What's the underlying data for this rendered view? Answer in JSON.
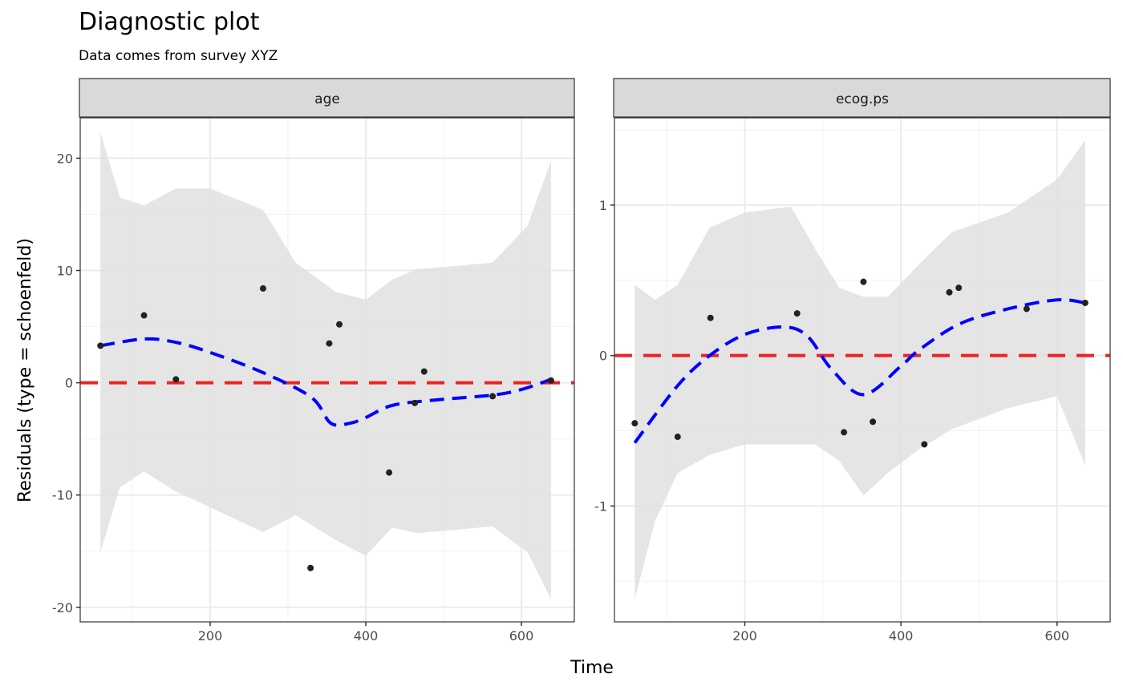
{
  "chart_data": [
    {
      "type": "scatter",
      "panel": "age",
      "title": "Diagnostic plot",
      "subtitle": "Data comes from survey XYZ",
      "xlabel": "Time",
      "ylabel": "Residuals (type = schoenfeld)",
      "xlim": [
        33,
        668
      ],
      "ylim": [
        -21.3,
        23.6
      ],
      "xticks": [
        200,
        400,
        600
      ],
      "yticks": [
        -20,
        -10,
        0,
        10,
        20
      ],
      "reference_line": 0,
      "points": {
        "x": [
          59,
          115,
          156,
          268,
          329,
          353,
          366,
          430,
          463,
          475,
          563,
          638
        ],
        "y": [
          3.3,
          6.0,
          0.3,
          8.4,
          -16.5,
          3.5,
          5.2,
          -8.0,
          -1.8,
          1.0,
          -1.2,
          0.2
        ]
      },
      "smooth": {
        "x": [
          59,
          115,
          156,
          200,
          268,
          330,
          355,
          380,
          400,
          435,
          495,
          563,
          600,
          638
        ],
        "y": [
          3.3,
          3.9,
          3.6,
          2.7,
          0.9,
          -1.3,
          -3.6,
          -3.6,
          -3.1,
          -2.0,
          -1.5,
          -1.1,
          -0.6,
          0.3
        ]
      },
      "band": {
        "x": [
          59,
          84,
          115,
          156,
          200,
          268,
          310,
          361,
          400,
          434,
          465,
          563,
          608,
          638
        ],
        "upper": [
          22.3,
          16.5,
          15.8,
          17.3,
          17.3,
          15.4,
          10.7,
          8.1,
          7.4,
          9.2,
          10.1,
          10.7,
          14.0,
          19.8
        ],
        "lower": [
          -15.1,
          -9.3,
          -7.9,
          -9.7,
          -11.1,
          -13.3,
          -11.8,
          -14.0,
          -15.4,
          -12.9,
          -13.4,
          -12.8,
          -15.1,
          -19.3
        ]
      }
    },
    {
      "type": "scatter",
      "panel": "ecog.ps",
      "xlabel": "Time",
      "xlim": [
        33,
        668
      ],
      "ylim": [
        -1.77,
        1.58
      ],
      "xticks": [
        200,
        400,
        600
      ],
      "yticks": [
        -1,
        0,
        1
      ],
      "reference_line": 0,
      "points": {
        "x": [
          59,
          114,
          156,
          267,
          327,
          352,
          364,
          430,
          462,
          474,
          561,
          636
        ],
        "y": [
          -0.45,
          -0.54,
          0.25,
          0.28,
          -0.51,
          0.49,
          -0.44,
          -0.59,
          0.42,
          0.45,
          0.31,
          0.35
        ]
      },
      "smooth": {
        "x": [
          59,
          114,
          155,
          200,
          249,
          280,
          311,
          352,
          400,
          424,
          475,
          537,
          600,
          636
        ],
        "y": [
          -0.58,
          -0.2,
          0.0,
          0.14,
          0.19,
          0.13,
          -0.09,
          -0.26,
          -0.07,
          0.04,
          0.21,
          0.31,
          0.37,
          0.35
        ]
      },
      "band": {
        "x": [
          59,
          85,
          114,
          155,
          200,
          259,
          290,
          321,
          352,
          383,
          424,
          465,
          537,
          600,
          636
        ],
        "upper": [
          0.47,
          0.37,
          0.47,
          0.85,
          0.95,
          0.99,
          0.71,
          0.45,
          0.39,
          0.39,
          0.61,
          0.82,
          0.95,
          1.17,
          1.43
        ],
        "lower": [
          -1.62,
          -1.1,
          -0.78,
          -0.66,
          -0.59,
          -0.59,
          -0.59,
          -0.7,
          -0.93,
          -0.78,
          -0.62,
          -0.49,
          -0.35,
          -0.27,
          -0.73
        ]
      }
    }
  ],
  "colors": {
    "smooth": "#0000ff",
    "reference": "#ee2222",
    "band": "#e0e0e0",
    "points": "#222222",
    "strip": "#d9d9d9"
  }
}
